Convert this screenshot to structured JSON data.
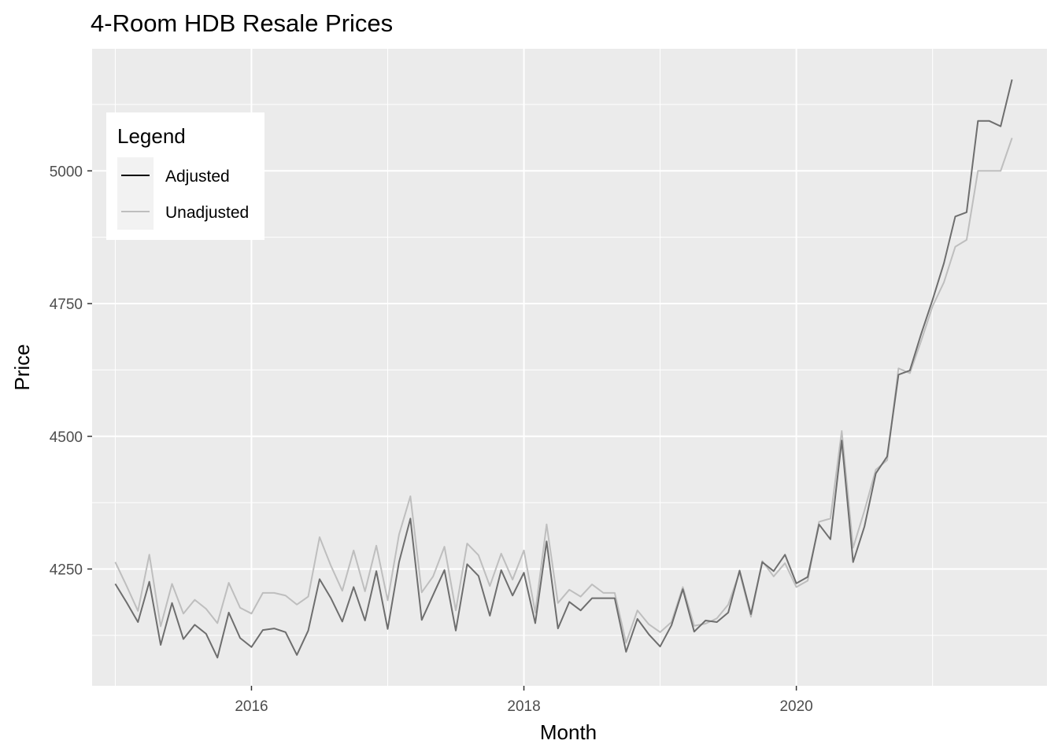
{
  "chart_data": {
    "type": "line",
    "title": "4-Room HDB Resale Prices",
    "xlabel": "Month",
    "ylabel": "Price",
    "x_start": "2015-01",
    "x_end": "2021-08",
    "xlim": [
      2014.83,
      2021.84
    ],
    "ylim": [
      4030,
      5230
    ],
    "x_ticks": [
      {
        "value": 2016,
        "label": "2016"
      },
      {
        "value": 2018,
        "label": "2018"
      },
      {
        "value": 2020,
        "label": "2020"
      }
    ],
    "y_ticks": [
      {
        "value": 4250,
        "label": "4250"
      },
      {
        "value": 4500,
        "label": "4500"
      },
      {
        "value": 4750,
        "label": "4750"
      },
      {
        "value": 5000,
        "label": "5000"
      }
    ],
    "grid": true,
    "legend": {
      "title": "Legend",
      "position": "top-left",
      "entries": [
        "Adjusted",
        "Unadjusted"
      ]
    },
    "series": [
      {
        "name": "Adjusted",
        "color": "#6e6e6e",
        "values": [
          4222,
          4187,
          4150,
          4226,
          4107,
          4186,
          4118,
          4145,
          4128,
          4083,
          4168,
          4120,
          4103,
          4135,
          4138,
          4131,
          4088,
          4134,
          4231,
          4195,
          4151,
          4216,
          4153,
          4246,
          4137,
          4263,
          4345,
          4154,
          4201,
          4248,
          4134,
          4259,
          4237,
          4162,
          4248,
          4200,
          4243,
          4148,
          4302,
          4138,
          4188,
          4172,
          4195,
          4195,
          4195,
          4094,
          4156,
          4127,
          4104,
          4144,
          4212,
          4132,
          4153,
          4150,
          4168,
          4247,
          4165,
          4263,
          4246,
          4277,
          4223,
          4235,
          4334,
          4306,
          4492,
          4263,
          4330,
          4430,
          4462,
          4616,
          4624,
          4693,
          4757,
          4826,
          4914,
          4922,
          5094,
          5094,
          5084,
          5172
        ]
      },
      {
        "name": "Unadjusted",
        "color": "#bebebe",
        "values": [
          4263,
          4218,
          4171,
          4277,
          4142,
          4222,
          4166,
          4192,
          4175,
          4148,
          4224,
          4177,
          4166,
          4205,
          4205,
          4200,
          4183,
          4198,
          4310,
          4256,
          4209,
          4285,
          4208,
          4294,
          4191,
          4315,
          4387,
          4206,
          4236,
          4292,
          4172,
          4298,
          4276,
          4218,
          4279,
          4230,
          4285,
          4168,
          4334,
          4186,
          4211,
          4198,
          4221,
          4205,
          4205,
          4111,
          4172,
          4146,
          4131,
          4150,
          4216,
          4143,
          4147,
          4157,
          4183,
          4244,
          4160,
          4265,
          4236,
          4261,
          4216,
          4228,
          4339,
          4345,
          4510,
          4290,
          4360,
          4437,
          4455,
          4628,
          4619,
          4680,
          4745,
          4790,
          4857,
          4870,
          5000,
          5000,
          5000,
          5062
        ]
      }
    ]
  }
}
